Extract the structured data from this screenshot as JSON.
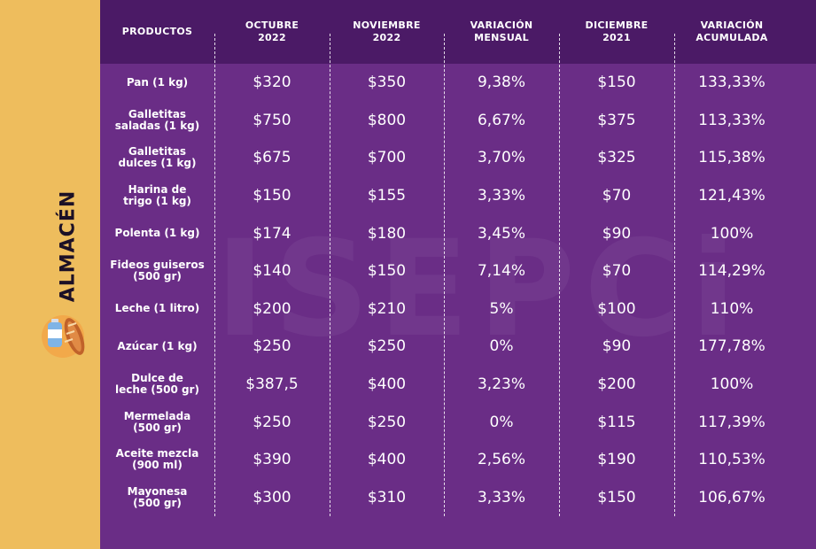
{
  "section_title": "ALMACÉN",
  "watermark": "ISEPCi",
  "columns": [
    "PRODUCTOS",
    "OCTUBRE\n2022",
    "NOVIEMBRE\n2022",
    "VARIACIÓN\nMENSUAL",
    "DICIEMBRE\n2021",
    "VARIACIÓN\nACUMULADA"
  ],
  "rows": [
    [
      "Pan (1 kg)",
      "$320",
      "$350",
      "9,38%",
      "$150",
      "133,33%"
    ],
    [
      "Galletitas\nsaladas (1 kg)",
      "$750",
      "$800",
      "6,67%",
      "$375",
      "113,33%"
    ],
    [
      "Galletitas\ndulces (1 kg)",
      "$675",
      "$700",
      "3,70%",
      "$325",
      "115,38%"
    ],
    [
      "Harina de\ntrigo (1 kg)",
      "$150",
      "$155",
      "3,33%",
      "$70",
      "121,43%"
    ],
    [
      "Polenta (1 kg)",
      "$174",
      "$180",
      "3,45%",
      "$90",
      "100%"
    ],
    [
      "Fideos guiseros\n(500 gr)",
      "$140",
      "$150",
      "7,14%",
      "$70",
      "114,29%"
    ],
    [
      "Leche (1 litro)",
      "$200",
      "$210",
      "5%",
      "$100",
      "110%"
    ],
    [
      "Azúcar (1 kg)",
      "$250",
      "$250",
      "0%",
      "$90",
      "177,78%"
    ],
    [
      "Dulce de\nleche (500 gr)",
      "$387,5",
      "$400",
      "3,23%",
      "$200",
      "100%"
    ],
    [
      "Mermelada\n(500 gr)",
      "$250",
      "$250",
      "0%",
      "$115",
      "117,39%"
    ],
    [
      "Aceite mezcla\n(900 ml)",
      "$390",
      "$400",
      "2,56%",
      "$190",
      "110,53%"
    ],
    [
      "Mayonesa\n(500 gr)",
      "$300",
      "$310",
      "3,33%",
      "$150",
      "106,67%"
    ]
  ],
  "colors": {
    "panel": "#6a2d86",
    "header": "#4b1a66",
    "side_strip": "#eebd5d",
    "side_title": "#1c1026"
  },
  "icons": [
    "grocery-icon"
  ]
}
